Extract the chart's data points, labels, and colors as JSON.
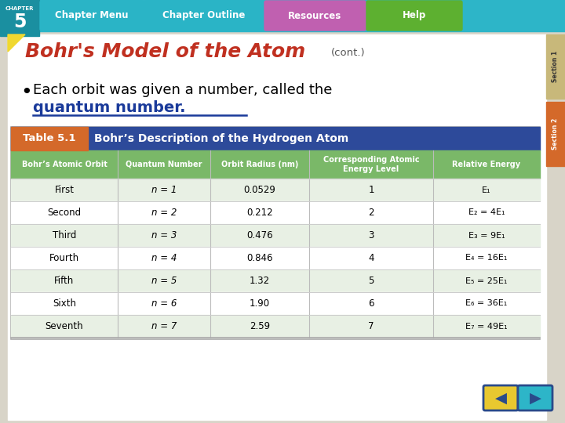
{
  "title_main": "Bohr's Model of the Atom",
  "title_cont": "(cont.)",
  "bullet_text_normal": "Each orbit was given a number, called the",
  "bullet_text_bold": "quantum number",
  "bullet_text_end": ".",
  "table_title": "Table 5.1",
  "table_subtitle": "Bohr’s Description of the Hydrogen Atom",
  "col_headers": [
    "Bohr’s Atomic Orbit",
    "Quantum Number",
    "Orbit Radius (nm)",
    "Corresponding Atomic\nEnergy Level",
    "Relative Energy"
  ],
  "rows": [
    [
      "First",
      "n = 1",
      "0.0529",
      "1",
      "E₁"
    ],
    [
      "Second",
      "n = 2",
      "0.212",
      "2",
      "E₂ = 4E₁"
    ],
    [
      "Third",
      "n = 3",
      "0.476",
      "3",
      "E₃ = 9E₁"
    ],
    [
      "Fourth",
      "n = 4",
      "0.846",
      "4",
      "E₄ = 16E₁"
    ],
    [
      "Fifth",
      "n = 5",
      "1.32",
      "5",
      "E₅ = 25E₁"
    ],
    [
      "Sixth",
      "n = 6",
      "1.90",
      "6",
      "E₆ = 36E₁"
    ],
    [
      "Seventh",
      "n = 7",
      "2.59",
      "7",
      "E₇ = 49E₁"
    ]
  ],
  "nav_bar_bg": "#2db5c8",
  "nav_texts": [
    "Chapter Menu",
    "Chapter Outline",
    "Resources",
    "Help"
  ],
  "nav_bgs": [
    "#2ab4c6",
    "#2ab4c6",
    "#c060b0",
    "#5db030"
  ],
  "slide_bg": "#ffffff",
  "outer_bg": "#d8d4c8",
  "title_color": "#c03020",
  "cont_color": "#555555",
  "table_header_bg": "#2d4a9a",
  "table_label_bg": "#d4692a",
  "col_header_bg": "#7ab868",
  "col_header_text": "#ffffff",
  "row_alt_bg": "#e8f0e4",
  "row_white_bg": "#ffffff",
  "table_border": "#aaaaaa",
  "quantum_color": "#1a3a9a",
  "section1_bg": "#c8b87a",
  "section2_bg": "#d4692a",
  "arrow_back_bg": "#e8c830",
  "arrow_fwd_bg": "#2db5c8",
  "arrow_border": "#2a4a8a"
}
